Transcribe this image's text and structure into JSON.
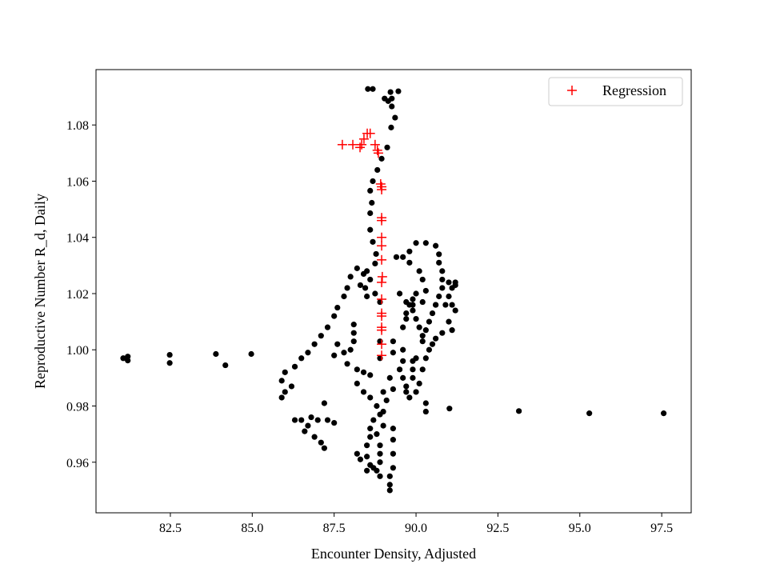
{
  "chart_data": {
    "type": "scatter",
    "title": "",
    "xlabel": "Encounter Density, Adjusted",
    "ylabel": "Reproductive Number R_d, Daily",
    "xlim": [
      80.23,
      98.4
    ],
    "ylim": [
      0.942,
      1.0997
    ],
    "xticks": [
      82.5,
      85.0,
      87.5,
      90.0,
      92.5,
      95.0,
      97.5
    ],
    "xtick_labels": [
      "82.5",
      "85.0",
      "87.5",
      "90.0",
      "92.5",
      "95.0",
      "97.5"
    ],
    "yticks": [
      0.96,
      0.98,
      1.0,
      1.02,
      1.04,
      1.06,
      1.08
    ],
    "ytick_labels": [
      "0.96",
      "0.98",
      "1.00",
      "1.02",
      "1.04",
      "1.06",
      "1.08"
    ],
    "grid": false,
    "legend_position": "top-right",
    "series": [
      {
        "marker": "circle",
        "color": "#000000",
        "points": [
          [
            81.06,
            0.997
          ],
          [
            81.2,
            0.9976
          ],
          [
            81.2,
            0.9962
          ],
          [
            82.48,
            0.9982
          ],
          [
            82.48,
            0.9953
          ],
          [
            83.89,
            0.9985
          ],
          [
            84.18,
            0.9945
          ],
          [
            84.97,
            0.9985
          ],
          [
            91.02,
            0.9791
          ],
          [
            93.14,
            0.9782
          ],
          [
            95.29,
            0.9774
          ],
          [
            97.56,
            0.9774
          ],
          [
            88.53,
            1.0928
          ],
          [
            88.68,
            1.0928
          ],
          [
            89.22,
            1.0917
          ],
          [
            89.46,
            1.092
          ],
          [
            89.04,
            1.0894
          ],
          [
            89.26,
            1.0894
          ],
          [
            89.15,
            1.0885
          ],
          [
            89.26,
            1.0866
          ],
          [
            89.36,
            1.0826
          ],
          [
            89.24,
            1.0791
          ],
          [
            89.12,
            1.072
          ],
          [
            88.95,
            1.068
          ],
          [
            88.82,
            1.064
          ],
          [
            88.68,
            1.06
          ],
          [
            88.6,
            1.0566
          ],
          [
            88.65,
            1.0523
          ],
          [
            88.6,
            1.0486
          ],
          [
            88.6,
            1.0427
          ],
          [
            88.68,
            1.0384
          ],
          [
            88.78,
            1.0341
          ],
          [
            88.75,
            1.0307
          ],
          [
            88.5,
            1.028
          ],
          [
            88.4,
            1.027
          ],
          [
            88.6,
            1.025
          ],
          [
            88.45,
            1.022
          ],
          [
            88.3,
            1.023
          ],
          [
            88.75,
            1.02
          ],
          [
            88.5,
            1.019
          ],
          [
            88.2,
            1.029
          ],
          [
            88.0,
            1.026
          ],
          [
            87.9,
            1.022
          ],
          [
            87.8,
            1.019
          ],
          [
            87.6,
            1.015
          ],
          [
            87.5,
            1.012
          ],
          [
            87.3,
            1.008
          ],
          [
            87.1,
            1.005
          ],
          [
            86.9,
            1.002
          ],
          [
            86.7,
            0.999
          ],
          [
            86.5,
            0.997
          ],
          [
            86.3,
            0.994
          ],
          [
            86.0,
            0.992
          ],
          [
            85.9,
            0.989
          ],
          [
            86.0,
            0.985
          ],
          [
            85.9,
            0.983
          ],
          [
            86.2,
            0.987
          ],
          [
            86.3,
            0.975
          ],
          [
            86.5,
            0.975
          ],
          [
            86.7,
            0.973
          ],
          [
            86.6,
            0.971
          ],
          [
            86.9,
            0.969
          ],
          [
            87.1,
            0.967
          ],
          [
            87.2,
            0.965
          ],
          [
            86.8,
            0.976
          ],
          [
            87.0,
            0.975
          ],
          [
            87.3,
            0.975
          ],
          [
            87.5,
            0.974
          ],
          [
            87.2,
            0.981
          ],
          [
            88.1,
            1.009
          ],
          [
            88.1,
            1.006
          ],
          [
            88.1,
            1.003
          ],
          [
            88.0,
            1.0
          ],
          [
            87.8,
            0.999
          ],
          [
            87.5,
            0.998
          ],
          [
            87.6,
            1.002
          ],
          [
            87.9,
            0.995
          ],
          [
            88.2,
            0.993
          ],
          [
            88.4,
            0.992
          ],
          [
            88.6,
            0.991
          ],
          [
            88.2,
            0.988
          ],
          [
            88.4,
            0.985
          ],
          [
            88.6,
            0.983
          ],
          [
            88.8,
            0.98
          ],
          [
            88.9,
            0.977
          ],
          [
            89.0,
            0.985
          ],
          [
            89.2,
            0.99
          ],
          [
            89.3,
            0.986
          ],
          [
            89.1,
            0.982
          ],
          [
            88.9,
            1.003
          ],
          [
            88.9,
            0.997
          ],
          [
            88.9,
            1.017
          ],
          [
            88.7,
            0.975
          ],
          [
            88.6,
            0.972
          ],
          [
            88.6,
            0.969
          ],
          [
            88.5,
            0.966
          ],
          [
            88.5,
            0.962
          ],
          [
            88.6,
            0.959
          ],
          [
            88.5,
            0.957
          ],
          [
            88.8,
            0.957
          ],
          [
            88.9,
            0.96
          ],
          [
            88.9,
            0.963
          ],
          [
            88.9,
            0.966
          ],
          [
            88.8,
            0.97
          ],
          [
            89.0,
            0.973
          ],
          [
            89.0,
            0.978
          ],
          [
            88.2,
            0.963
          ],
          [
            88.3,
            0.961
          ],
          [
            89.3,
            0.972
          ],
          [
            89.3,
            0.968
          ],
          [
            89.3,
            0.963
          ],
          [
            89.3,
            0.958
          ],
          [
            89.2,
            0.955
          ],
          [
            89.2,
            0.952
          ],
          [
            89.2,
            0.95
          ],
          [
            88.9,
            0.955
          ],
          [
            88.7,
            0.958
          ],
          [
            89.3,
            1.003
          ],
          [
            89.3,
            0.999
          ],
          [
            89.6,
            1.0
          ],
          [
            89.6,
            0.996
          ],
          [
            89.5,
            0.993
          ],
          [
            89.6,
            0.99
          ],
          [
            89.7,
            0.987
          ],
          [
            89.7,
            0.985
          ],
          [
            89.8,
            0.983
          ],
          [
            89.9,
            0.99
          ],
          [
            90.0,
            0.985
          ],
          [
            90.1,
            0.988
          ],
          [
            90.2,
            0.993
          ],
          [
            90.3,
            0.997
          ],
          [
            90.4,
            1.0
          ],
          [
            90.5,
            1.002
          ],
          [
            90.3,
            0.981
          ],
          [
            90.3,
            0.978
          ],
          [
            89.9,
            0.993
          ],
          [
            89.8,
            1.035
          ],
          [
            90.0,
            1.038
          ],
          [
            90.3,
            1.038
          ],
          [
            90.6,
            1.037
          ],
          [
            90.7,
            1.034
          ],
          [
            90.7,
            1.031
          ],
          [
            90.8,
            1.028
          ],
          [
            90.8,
            1.025
          ],
          [
            90.8,
            1.022
          ],
          [
            90.7,
            1.019
          ],
          [
            90.6,
            1.016
          ],
          [
            90.5,
            1.013
          ],
          [
            90.4,
            1.01
          ],
          [
            90.3,
            1.007
          ],
          [
            90.2,
            1.005
          ],
          [
            90.2,
            1.003
          ],
          [
            91.2,
            1.024
          ],
          [
            91.1,
            1.022
          ],
          [
            91.0,
            1.019
          ],
          [
            91.1,
            1.016
          ],
          [
            91.2,
            1.014
          ],
          [
            90.9,
            1.016
          ],
          [
            90.6,
            1.016
          ],
          [
            91.0,
            1.01
          ],
          [
            91.1,
            1.007
          ],
          [
            90.8,
            1.006
          ],
          [
            90.6,
            1.004
          ],
          [
            91.2,
            1.023
          ],
          [
            91.0,
            1.024
          ],
          [
            89.5,
            1.02
          ],
          [
            89.7,
            1.017
          ],
          [
            89.9,
            1.014
          ],
          [
            90.0,
            1.011
          ],
          [
            90.1,
            1.008
          ],
          [
            90.3,
            1.021
          ],
          [
            90.2,
            1.025
          ],
          [
            90.1,
            1.028
          ],
          [
            89.8,
            1.031
          ],
          [
            89.6,
            1.033
          ],
          [
            89.4,
            1.033
          ],
          [
            89.9,
            1.016
          ],
          [
            89.7,
            1.013
          ],
          [
            89.8,
            1.016
          ],
          [
            89.7,
            1.011
          ],
          [
            89.6,
            1.008
          ],
          [
            89.9,
            1.018
          ],
          [
            90.0,
            1.02
          ],
          [
            90.2,
            1.017
          ],
          [
            90.0,
            0.997
          ],
          [
            89.9,
            0.996
          ]
        ]
      },
      {
        "name": "Regression",
        "marker": "plus",
        "color": "#ff0000",
        "points": [
          [
            87.75,
            1.073
          ],
          [
            88.07,
            1.073
          ],
          [
            88.29,
            1.072
          ],
          [
            88.34,
            1.073
          ],
          [
            88.41,
            1.075
          ],
          [
            88.51,
            1.077
          ],
          [
            88.6,
            1.077
          ],
          [
            88.75,
            1.073
          ],
          [
            88.82,
            1.071
          ],
          [
            88.85,
            1.07
          ],
          [
            88.92,
            1.059
          ],
          [
            88.95,
            1.058
          ],
          [
            88.95,
            1.057
          ],
          [
            88.95,
            1.047
          ],
          [
            88.95,
            1.046
          ],
          [
            88.95,
            1.04
          ],
          [
            88.95,
            1.037
          ],
          [
            88.95,
            1.032
          ],
          [
            88.97,
            1.026
          ],
          [
            88.95,
            1.024
          ],
          [
            88.95,
            1.018
          ],
          [
            88.95,
            1.013
          ],
          [
            88.95,
            1.012
          ],
          [
            88.95,
            1.008
          ],
          [
            88.95,
            1.007
          ],
          [
            88.95,
            1.002
          ],
          [
            88.95,
            0.998
          ]
        ]
      }
    ]
  }
}
